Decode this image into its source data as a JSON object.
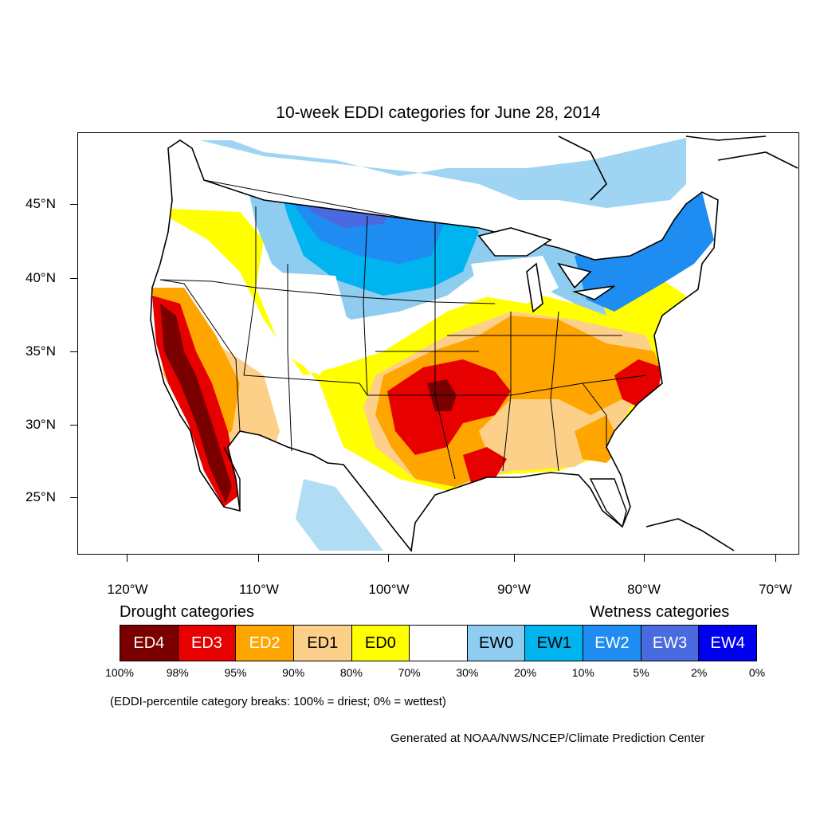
{
  "title": "10-week EDDI categories for June 28, 2014",
  "lat_labels": [
    "45°N",
    "40°N",
    "35°N",
    "30°N",
    "25°N"
  ],
  "lon_labels": [
    "120°W",
    "110°W",
    "100°W",
    "90°W",
    "80°W",
    "70°W"
  ],
  "legend": {
    "drought_heading": "Drought categories",
    "wetness_heading": "Wetness categories",
    "categories": [
      {
        "label": "ED4",
        "color": "#7a0000",
        "text_color": "#ffffff"
      },
      {
        "label": "ED3",
        "color": "#e60000",
        "text_color": "#ffffff"
      },
      {
        "label": "ED2",
        "color": "#ffa500",
        "text_color": "#ffffff"
      },
      {
        "label": "ED1",
        "color": "#fdd08a",
        "text_color": "#000000"
      },
      {
        "label": "ED0",
        "color": "#ffff00",
        "text_color": "#000000"
      },
      {
        "label": "",
        "color": "#ffffff",
        "text_color": "#000000"
      },
      {
        "label": "EW0",
        "color": "#8ecdf0",
        "text_color": "#000000"
      },
      {
        "label": "EW1",
        "color": "#00b4f0",
        "text_color": "#000000"
      },
      {
        "label": "EW2",
        "color": "#1e8cf0",
        "text_color": "#ffffff"
      },
      {
        "label": "EW3",
        "color": "#4a6ae0",
        "text_color": "#ffffff"
      },
      {
        "label": "EW4",
        "color": "#0000f0",
        "text_color": "#ffffff"
      }
    ],
    "breaks": [
      "100%",
      "98%",
      "95%",
      "90%",
      "80%",
      "70%",
      "30%",
      "20%",
      "10%",
      "5%",
      "2%",
      "0%"
    ]
  },
  "footnote": "(EDDI-percentile category breaks: 100% = driest; 0% = wettest)",
  "credit": "Generated at NOAA/NWS/NCEP/Climate Prediction Center"
}
